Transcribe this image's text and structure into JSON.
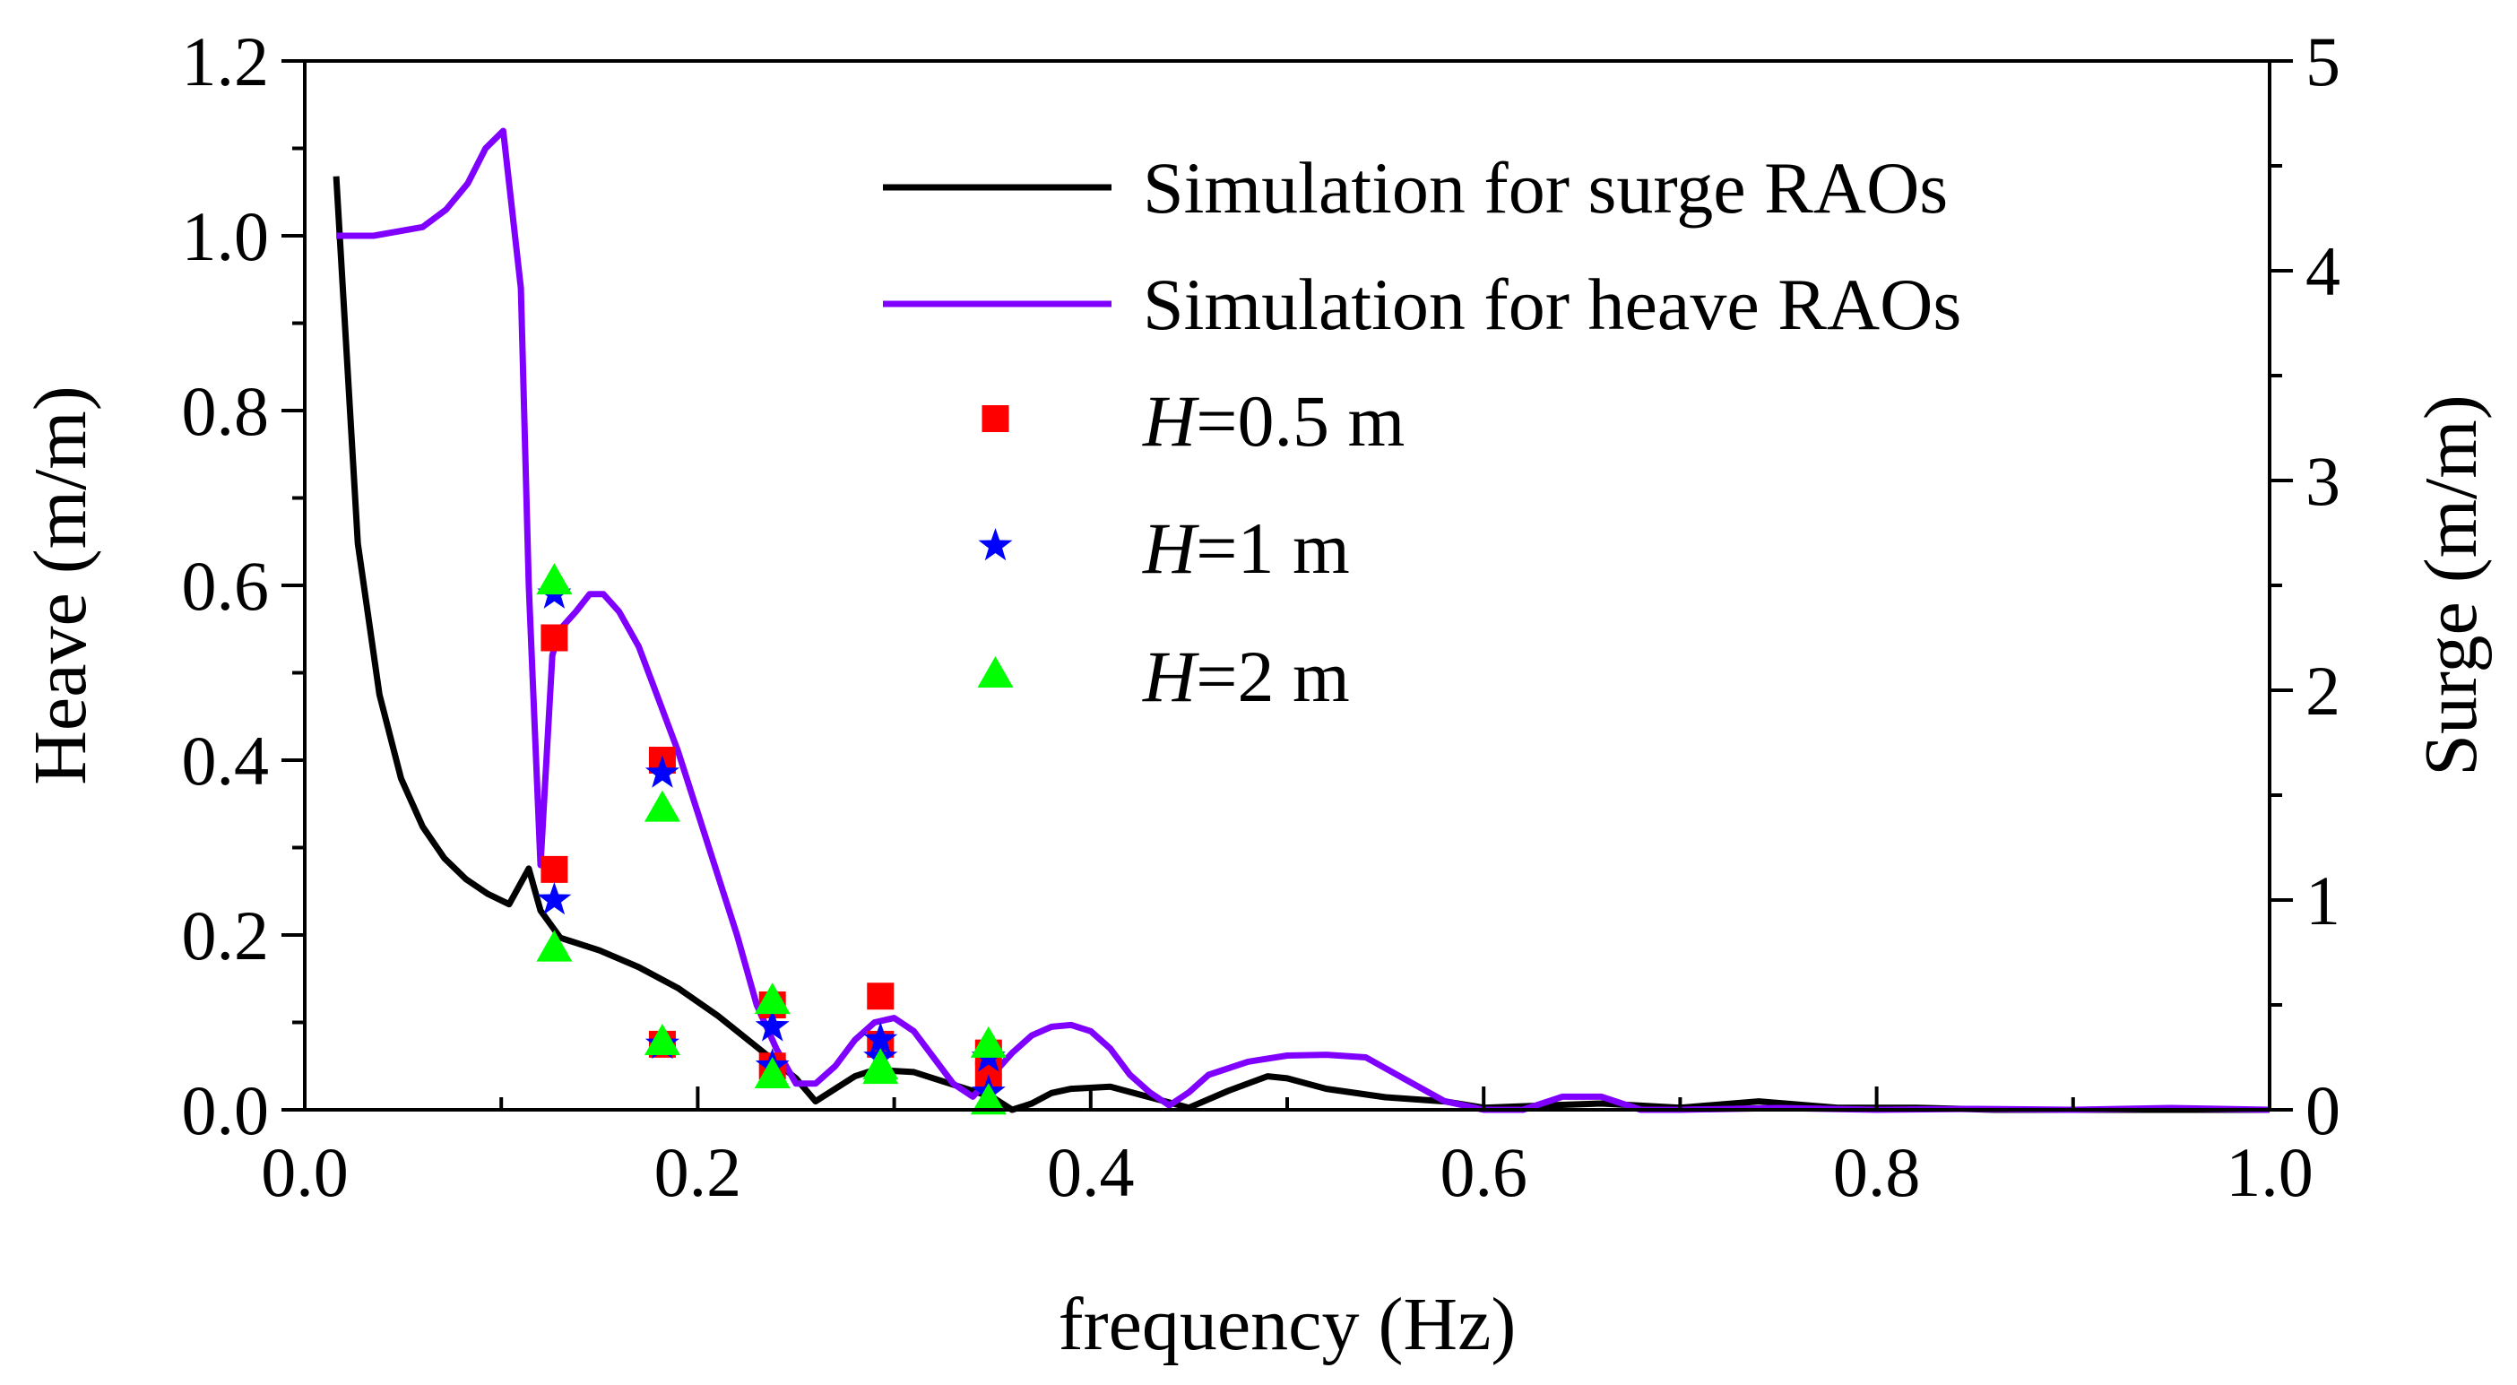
{
  "chart_data": {
    "type": "line",
    "title": "",
    "xlabel": "frequency (Hz)",
    "ylabel_left": "Heave (m/m)",
    "ylabel_right": "Surge (m/m)",
    "xlim": [
      0,
      1.0
    ],
    "ylim_left": [
      0,
      1.2
    ],
    "ylim_right": [
      0,
      5
    ],
    "grid": false,
    "legend_position": "top-right",
    "x_ticks": [
      "0.0",
      "0.2",
      "0.4",
      "0.6",
      "0.8",
      "1.0"
    ],
    "x_tick_values": [
      0,
      0.2,
      0.4,
      0.6,
      0.8,
      1.0
    ],
    "y_left_ticks": [
      "0.0",
      "0.2",
      "0.4",
      "0.6",
      "0.8",
      "1.0",
      "1.2"
    ],
    "y_left_tick_values": [
      0,
      0.2,
      0.4,
      0.6,
      0.8,
      1.0,
      1.2
    ],
    "y_right_ticks": [
      "0",
      "1",
      "2",
      "3",
      "4",
      "5"
    ],
    "y_right_tick_values": [
      0,
      1,
      2,
      3,
      4,
      5
    ],
    "legend": [
      {
        "label": "Simulation for surge RAOs",
        "kind": "line",
        "color": "#000000"
      },
      {
        "label": "Simulation for heave RAOs",
        "kind": "line",
        "color": "#8000ff"
      },
      {
        "label_italic": "H",
        "label_rest": "=0.5 m",
        "kind": "square",
        "color": "#ff0000"
      },
      {
        "label_italic": "H",
        "label_rest": "=1 m",
        "kind": "star",
        "color": "#0000ff"
      },
      {
        "label_italic": "H",
        "label_rest": "=2 m",
        "kind": "triangle",
        "color": "#00ff00"
      }
    ],
    "series": [
      {
        "name": "Simulation for surge RAOs",
        "axis": "right",
        "color": "#000000",
        "x": [
          0.016,
          0.027,
          0.038,
          0.049,
          0.06,
          0.071,
          0.082,
          0.093,
          0.104,
          0.114,
          0.12,
          0.13,
          0.15,
          0.17,
          0.19,
          0.21,
          0.23,
          0.25,
          0.26,
          0.27,
          0.28,
          0.29,
          0.31,
          0.33,
          0.35,
          0.36,
          0.37,
          0.38,
          0.39,
          0.41,
          0.43,
          0.45,
          0.47,
          0.49,
          0.5,
          0.52,
          0.55,
          0.58,
          0.6,
          0.63,
          0.66,
          0.7,
          0.74,
          0.78,
          0.82,
          0.86,
          0.9,
          0.94,
          1.0
        ],
        "y": [
          4.45,
          2.7,
          1.98,
          1.58,
          1.35,
          1.2,
          1.1,
          1.03,
          0.98,
          1.15,
          0.95,
          0.82,
          0.76,
          0.68,
          0.58,
          0.45,
          0.3,
          0.15,
          0.04,
          0.1,
          0.16,
          0.19,
          0.18,
          0.12,
          0.06,
          0.0,
          0.03,
          0.08,
          0.1,
          0.11,
          0.06,
          0.01,
          0.09,
          0.16,
          0.15,
          0.1,
          0.06,
          0.04,
          0.01,
          0.02,
          0.03,
          0.01,
          0.04,
          0.01,
          0.01,
          0.0,
          0.0,
          0.0,
          0.0
        ]
      },
      {
        "name": "Simulation for heave RAOs",
        "axis": "left",
        "color": "#8000ff",
        "x": [
          0.016,
          0.035,
          0.06,
          0.072,
          0.083,
          0.092,
          0.101,
          0.11,
          0.114,
          0.12,
          0.123,
          0.126,
          0.13,
          0.138,
          0.145,
          0.152,
          0.16,
          0.17,
          0.18,
          0.19,
          0.2,
          0.21,
          0.22,
          0.23,
          0.24,
          0.25,
          0.26,
          0.27,
          0.28,
          0.29,
          0.3,
          0.31,
          0.32,
          0.33,
          0.34,
          0.35,
          0.36,
          0.37,
          0.38,
          0.39,
          0.4,
          0.41,
          0.42,
          0.43,
          0.44,
          0.45,
          0.46,
          0.48,
          0.5,
          0.52,
          0.54,
          0.56,
          0.58,
          0.6,
          0.62,
          0.64,
          0.66,
          0.68,
          0.7,
          0.75,
          0.8,
          0.85,
          0.9,
          0.95,
          1.0
        ],
        "y": [
          1.0,
          1.0,
          1.01,
          1.03,
          1.06,
          1.1,
          1.12,
          0.94,
          0.6,
          0.28,
          0.4,
          0.52,
          0.55,
          0.57,
          0.59,
          0.59,
          0.57,
          0.53,
          0.47,
          0.41,
          0.34,
          0.27,
          0.2,
          0.12,
          0.07,
          0.03,
          0.03,
          0.05,
          0.08,
          0.1,
          0.105,
          0.09,
          0.06,
          0.03,
          0.015,
          0.04,
          0.065,
          0.085,
          0.095,
          0.097,
          0.09,
          0.07,
          0.04,
          0.02,
          0.005,
          0.02,
          0.04,
          0.055,
          0.062,
          0.063,
          0.06,
          0.035,
          0.01,
          0.0,
          0.0,
          0.015,
          0.015,
          0.0,
          0.0,
          0.002,
          0.0,
          0.001,
          0.0,
          0.002,
          0.0
        ]
      },
      {
        "name": "H=0.5 m",
        "axis": "left",
        "marker": "square",
        "color": "#ff0000",
        "points": [
          [
            0.127,
            0.54
          ],
          [
            0.127,
            0.275
          ],
          [
            0.182,
            0.4
          ],
          [
            0.182,
            0.075
          ],
          [
            0.238,
            0.12
          ],
          [
            0.238,
            0.05
          ],
          [
            0.293,
            0.13
          ],
          [
            0.293,
            0.075
          ],
          [
            0.348,
            0.065
          ],
          [
            0.348,
            0.04
          ]
        ]
      },
      {
        "name": "H=1 m",
        "axis": "left",
        "marker": "star",
        "color": "#0000ff",
        "points": [
          [
            0.127,
            0.59
          ],
          [
            0.127,
            0.24
          ],
          [
            0.182,
            0.385
          ],
          [
            0.182,
            0.075
          ],
          [
            0.238,
            0.095
          ],
          [
            0.238,
            0.05
          ],
          [
            0.293,
            0.08
          ],
          [
            0.293,
            0.06
          ],
          [
            0.348,
            0.06
          ],
          [
            0.348,
            0.02
          ]
        ]
      },
      {
        "name": "H=2 m",
        "axis": "left",
        "marker": "triangle",
        "color": "#00ff00",
        "points": [
          [
            0.127,
            0.605
          ],
          [
            0.127,
            0.185
          ],
          [
            0.182,
            0.345
          ],
          [
            0.182,
            0.078
          ],
          [
            0.238,
            0.125
          ],
          [
            0.238,
            0.04
          ],
          [
            0.293,
            0.05
          ],
          [
            0.293,
            0.045
          ],
          [
            0.348,
            0.075
          ],
          [
            0.348,
            0.01
          ]
        ]
      }
    ]
  }
}
